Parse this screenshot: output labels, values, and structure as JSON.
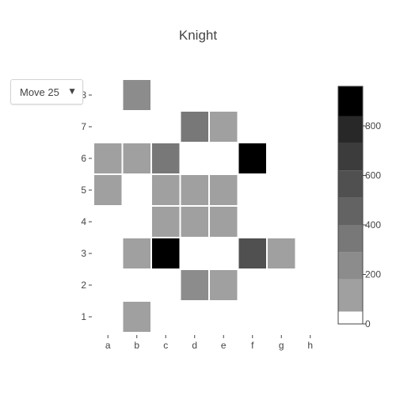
{
  "control": {
    "selected": "Move 25",
    "arrow_icon": "triangle-down-icon"
  },
  "chart_data": {
    "type": "heatmap",
    "title": "Knight",
    "files": [
      "a",
      "b",
      "c",
      "d",
      "e",
      "f",
      "g",
      "h"
    ],
    "ranks": [
      1,
      2,
      3,
      4,
      5,
      6,
      7,
      8
    ],
    "cells": [
      {
        "file": "b",
        "rank": 8,
        "value": 220
      },
      {
        "file": "d",
        "rank": 7,
        "value": 300
      },
      {
        "file": "e",
        "rank": 7,
        "value": 150
      },
      {
        "file": "a",
        "rank": 6,
        "value": 150
      },
      {
        "file": "b",
        "rank": 6,
        "value": 150
      },
      {
        "file": "c",
        "rank": 6,
        "value": 300
      },
      {
        "file": "f",
        "rank": 6,
        "value": 900
      },
      {
        "file": "a",
        "rank": 5,
        "value": 150
      },
      {
        "file": "c",
        "rank": 5,
        "value": 150
      },
      {
        "file": "d",
        "rank": 5,
        "value": 150
      },
      {
        "file": "e",
        "rank": 5,
        "value": 150
      },
      {
        "file": "c",
        "rank": 4,
        "value": 150
      },
      {
        "file": "d",
        "rank": 4,
        "value": 150
      },
      {
        "file": "e",
        "rank": 4,
        "value": 150
      },
      {
        "file": "b",
        "rank": 3,
        "value": 150
      },
      {
        "file": "c",
        "rank": 3,
        "value": 900
      },
      {
        "file": "f",
        "rank": 3,
        "value": 580
      },
      {
        "file": "g",
        "rank": 3,
        "value": 150
      },
      {
        "file": "d",
        "rank": 2,
        "value": 220
      },
      {
        "file": "e",
        "rank": 2,
        "value": 150
      },
      {
        "file": "b",
        "rank": 1,
        "value": 150
      }
    ],
    "colorbar": {
      "range": [
        0,
        960
      ],
      "ticks": [
        0,
        200,
        400,
        600,
        800
      ],
      "bands": [
        {
          "from": 0,
          "to": 50,
          "color": "#ffffff"
        },
        {
          "from": 50,
          "to": 180,
          "color": "#a0a0a0"
        },
        {
          "from": 180,
          "to": 290,
          "color": "#8c8c8c"
        },
        {
          "from": 290,
          "to": 400,
          "color": "#787878"
        },
        {
          "from": 400,
          "to": 510,
          "color": "#636363"
        },
        {
          "from": 510,
          "to": 620,
          "color": "#505050"
        },
        {
          "from": 620,
          "to": 730,
          "color": "#3c3c3c"
        },
        {
          "from": 730,
          "to": 840,
          "color": "#282828"
        },
        {
          "from": 840,
          "to": 960,
          "color": "#000000"
        }
      ]
    }
  }
}
